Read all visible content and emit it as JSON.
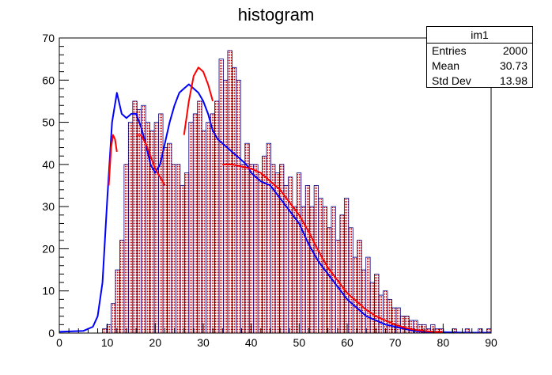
{
  "title": "histogram",
  "stats": {
    "name": "im1",
    "rows": [
      {
        "key": "Entries",
        "value": "2000"
      },
      {
        "key": "Mean",
        "value": "30.73"
      },
      {
        "key": "Std Dev",
        "value": "13.98"
      }
    ]
  },
  "colors": {
    "histogram_outline": "#000080",
    "histogram_fill": "#aa0000",
    "fit_red": "#ff0000",
    "fit_blue": "#0000ff"
  },
  "chart_data": {
    "type": "bar",
    "title": "histogram",
    "xlabel": "",
    "ylabel": "",
    "xlim": [
      0,
      90
    ],
    "ylim": [
      0,
      70
    ],
    "x_ticks": [
      0,
      10,
      20,
      30,
      40,
      50,
      60,
      70,
      80,
      90
    ],
    "y_ticks": [
      0,
      10,
      20,
      30,
      40,
      50,
      60,
      70
    ],
    "bin_width": 0.9,
    "bin_values": [
      0,
      0,
      0,
      0,
      0,
      0,
      0,
      0,
      0,
      0,
      1,
      2,
      7,
      15,
      22,
      40,
      50,
      55,
      53,
      54,
      50,
      48,
      50,
      52,
      44,
      45,
      40,
      40,
      35,
      38,
      50,
      52,
      55,
      48,
      50,
      52,
      55,
      65,
      60,
      67,
      63,
      60,
      40,
      45,
      40,
      40,
      38,
      42,
      45,
      40,
      38,
      40,
      35,
      37,
      30,
      38,
      30,
      35,
      30,
      35,
      32,
      30,
      25,
      30,
      22,
      28,
      32,
      25,
      18,
      22,
      15,
      18,
      12,
      14,
      9,
      10,
      8,
      6,
      6,
      4,
      4,
      3,
      3,
      2,
      2,
      1,
      2,
      1,
      1,
      0,
      0,
      1,
      0,
      0,
      1,
      0,
      0,
      1,
      0,
      1
    ],
    "series": [
      {
        "name": "",
        "color": "#0000ff",
        "x": [
          0,
          5,
          7,
          8,
          9,
          10,
          11,
          12,
          13,
          14,
          15,
          16,
          17,
          18,
          19,
          20,
          21,
          22,
          23,
          24,
          25,
          26,
          27,
          28,
          29,
          30,
          31,
          32,
          33,
          34,
          35,
          36,
          37,
          38,
          39,
          40,
          42,
          44,
          46,
          48,
          50,
          52,
          54,
          56,
          58,
          60,
          62,
          64,
          66,
          68,
          70,
          72,
          74,
          76,
          80,
          85,
          90
        ],
        "y": [
          0.3,
          0.5,
          1.5,
          4,
          12,
          32,
          50,
          57,
          52,
          51,
          52,
          52,
          49,
          45,
          40,
          38,
          40,
          45,
          50,
          54,
          57,
          58,
          59,
          58,
          57,
          55,
          52,
          48,
          46,
          45,
          44,
          43,
          42,
          41,
          40,
          38,
          36,
          35,
          32,
          29,
          26,
          21,
          17,
          14,
          11,
          8,
          6,
          4,
          3,
          2,
          1.5,
          1,
          0.5,
          0.3,
          0.2,
          0.1,
          0.1
        ]
      },
      {
        "name": "",
        "color": "#ff0000",
        "x": [
          10.3,
          10.8,
          11.2,
          11.6,
          12.0
        ],
        "y": [
          35,
          44,
          47,
          46,
          43
        ]
      },
      {
        "name": "",
        "color": "#ff0000",
        "x": [
          16.0,
          17.0,
          18.0,
          19.0,
          20.0,
          21.0,
          22.0
        ],
        "y": [
          47,
          47,
          45,
          42,
          39,
          37,
          35
        ]
      },
      {
        "name": "",
        "color": "#ff0000",
        "x": [
          26.0,
          27.0,
          28.0,
          29.0,
          30.0,
          31.0,
          32.0
        ],
        "y": [
          47,
          55,
          61,
          63,
          62,
          59,
          55
        ]
      },
      {
        "name": "",
        "color": "#ff0000",
        "x": [
          34,
          36,
          38,
          40,
          42,
          44,
          46,
          48,
          50,
          52,
          54,
          56,
          58,
          60,
          62,
          64,
          66,
          68,
          70,
          72,
          74,
          76,
          78,
          80
        ],
        "y": [
          40,
          40,
          39.5,
          39,
          38,
          36,
          34,
          31,
          28,
          24,
          19.5,
          15.5,
          12.5,
          9.5,
          7.5,
          5.5,
          4,
          3,
          2,
          1.3,
          0.8,
          0.5,
          0.3,
          0.2
        ]
      }
    ]
  }
}
